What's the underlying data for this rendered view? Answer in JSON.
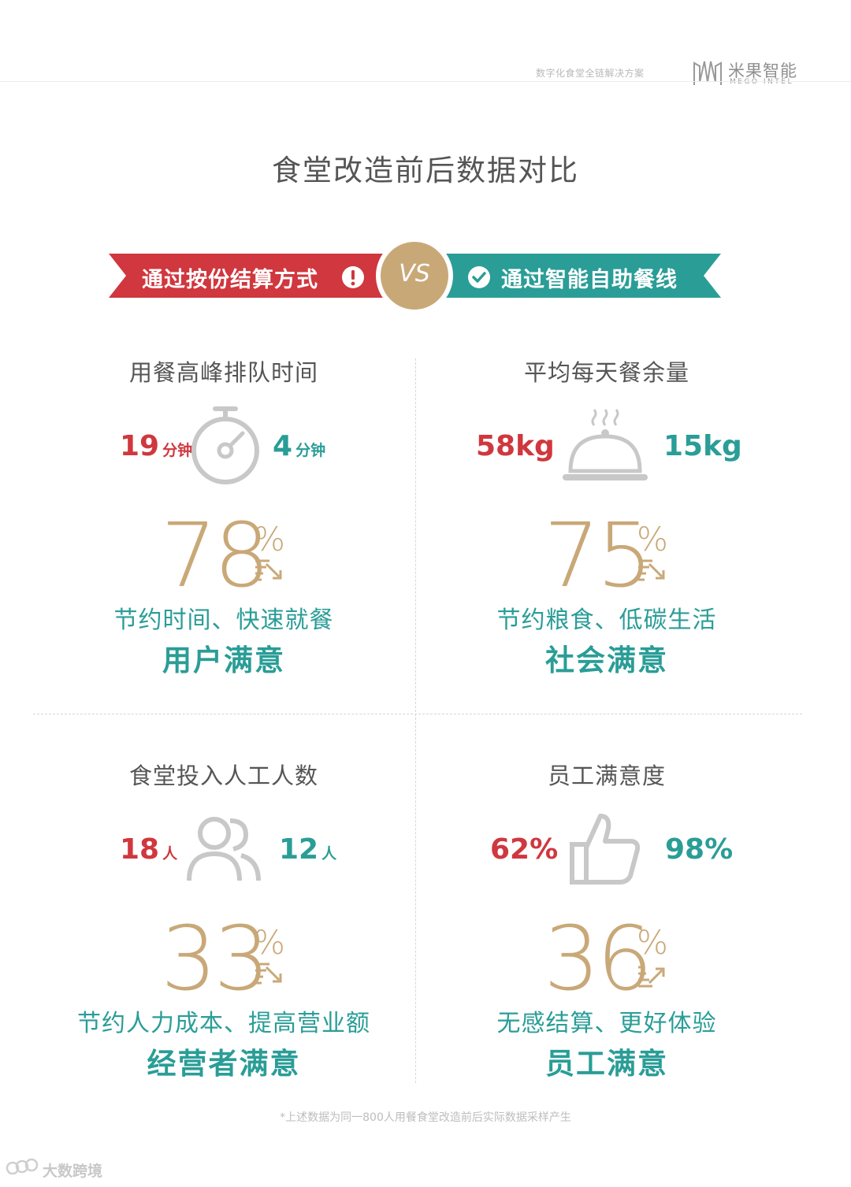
{
  "header": {
    "subtitle": "数字化食堂全链解决方案",
    "logo_cn": "米果智能",
    "logo_en": "MEGO INTEL"
  },
  "title": "食堂改造前后数据对比",
  "banner": {
    "left_label": "通过按份结算方式",
    "vs_label": "VS",
    "right_label": "通过智能自助餐线",
    "left_color": "#d0373e",
    "right_color": "#2a9d97",
    "vs_color": "#c9a878"
  },
  "quadrants": [
    {
      "title": "用餐高峰排队时间",
      "before_value": "19",
      "before_unit": "分钟",
      "after_value": "4",
      "after_unit": "分钟",
      "icon": "stopwatch-icon",
      "percent": "78",
      "percent_sign": "%",
      "trend": "down",
      "line1": "节约时间、快速就餐",
      "line2": "用户满意"
    },
    {
      "title": "平均每天餐余量",
      "before_value": "58kg",
      "before_unit": "",
      "after_value": "15kg",
      "after_unit": "",
      "icon": "food-cloche-icon",
      "percent": "75",
      "percent_sign": "%",
      "trend": "down",
      "line1": "节约粮食、低碳生活",
      "line2": "社会满意"
    },
    {
      "title": "食堂投入人工人数",
      "before_value": "18",
      "before_unit": "人",
      "after_value": "12",
      "after_unit": "人",
      "icon": "people-icon",
      "percent": "33",
      "percent_sign": "%",
      "trend": "down",
      "line1": "节约人力成本、提高营业额",
      "line2": "经营者满意"
    },
    {
      "title": "员工满意度",
      "before_value": "62%",
      "before_unit": "",
      "after_value": "98%",
      "after_unit": "",
      "icon": "thumbs-up-icon",
      "percent": "36",
      "percent_sign": "%",
      "trend": "up",
      "line1": "无感结算、更好体验",
      "line2": "员工满意"
    }
  ],
  "footnote": "*上述数据为同一800人用餐食堂改造前后实际数据采样产生",
  "watermark": "大数跨境"
}
